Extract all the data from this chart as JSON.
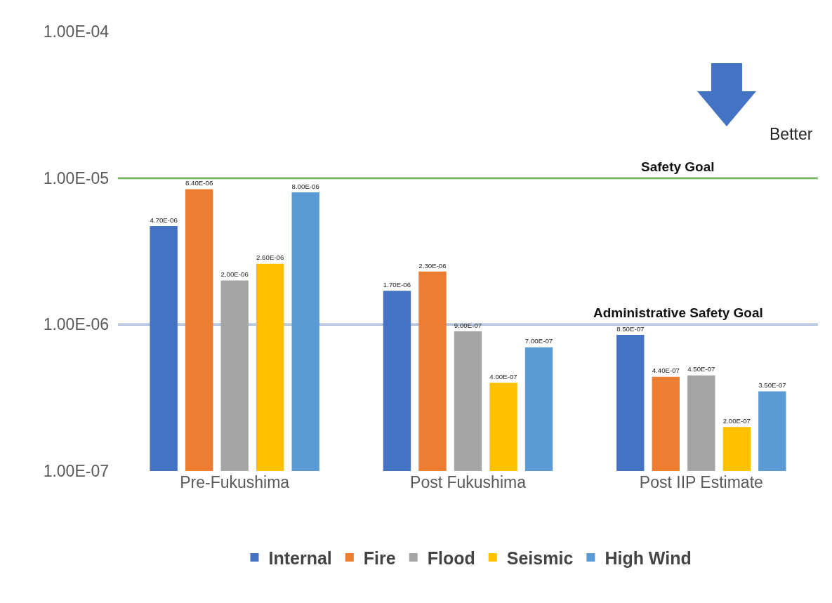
{
  "chart_data": {
    "type": "bar",
    "categories": [
      "Pre-Fukushima",
      "Post Fukushima",
      "Post IIP Estimate"
    ],
    "series": [
      {
        "name": "Internal",
        "color": "#4472c4",
        "values": [
          4.7e-06,
          1.7e-06,
          8.5e-07
        ],
        "value_labels": [
          "4.70E-06",
          "1.70E-06",
          "8.50E-07"
        ]
      },
      {
        "name": "Fire",
        "color": "#ed7d31",
        "values": [
          8.4e-06,
          2.3e-06,
          4.4e-07
        ],
        "value_labels": [
          "8.40E-06",
          "2.30E-06",
          "4.40E-07"
        ]
      },
      {
        "name": "Flood",
        "color": "#a5a5a5",
        "values": [
          2e-06,
          9e-07,
          4.5e-07
        ],
        "value_labels": [
          "2.00E-06",
          "9.00E-07",
          "4.50E-07"
        ]
      },
      {
        "name": "Seismic",
        "color": "#ffc000",
        "values": [
          2.6e-06,
          4e-07,
          2e-07
        ],
        "value_labels": [
          "2.60E-06",
          "4.00E-07",
          "2.00E-07"
        ]
      },
      {
        "name": "High Wind",
        "color": "#5b9bd5",
        "values": [
          8e-06,
          7e-07,
          3.5e-07
        ],
        "value_labels": [
          "8.00E-06",
          "7.00E-07",
          "3.50E-07"
        ]
      }
    ],
    "log": "y",
    "ylim": [
      1e-07,
      0.0001
    ],
    "yticks": [
      {
        "value": 1e-07,
        "label": "1.00E-07"
      },
      {
        "value": 1e-06,
        "label": "1.00E-06"
      },
      {
        "value": 1e-05,
        "label": "1.00E-05"
      },
      {
        "value": 0.0001,
        "label": "1.00E-04"
      }
    ],
    "grid": "y",
    "legend": "bottom",
    "ref_lines": [
      {
        "axis": "y",
        "value": 1e-05,
        "label": "Safety Goal",
        "color": "#5cb146"
      },
      {
        "axis": "y",
        "value": 1e-06,
        "label": "Administrative Safety Goal",
        "color": "#8eaadb"
      }
    ],
    "annotations": [
      "Better"
    ]
  }
}
